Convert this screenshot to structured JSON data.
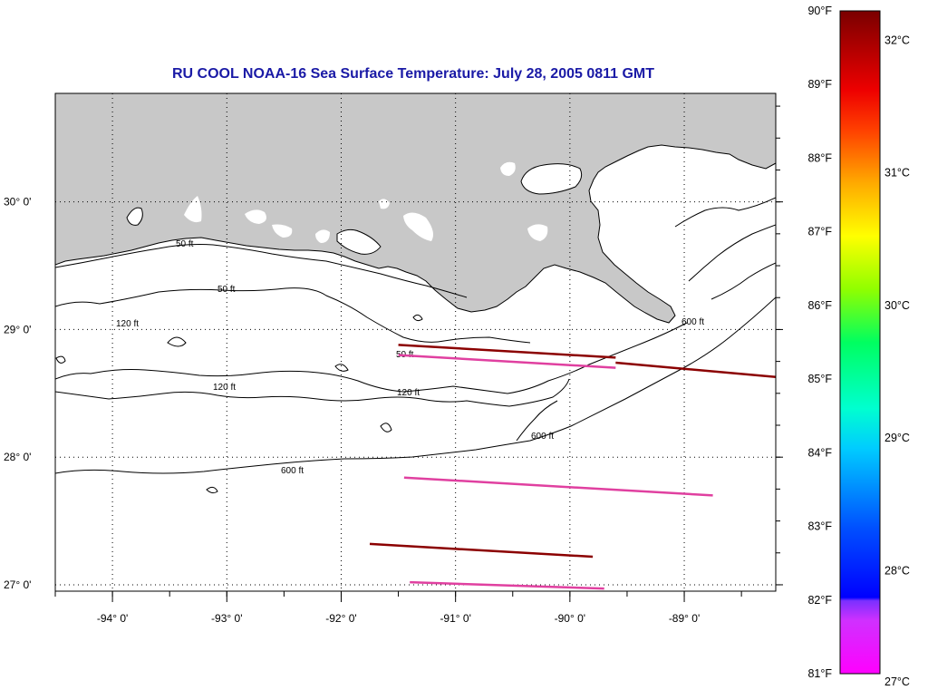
{
  "title": "RU COOL  NOAA-16  Sea Surface Temperature:  July 28, 2005 0811 GMT",
  "map": {
    "lon_range": [
      -94.5,
      -88.2
    ],
    "lat_range": [
      26.95,
      30.85
    ],
    "lon_ticks": [
      {
        "value": -94,
        "label": "-94° 0'"
      },
      {
        "value": -93,
        "label": "-93° 0'"
      },
      {
        "value": -92,
        "label": "-92° 0'"
      },
      {
        "value": -91,
        "label": "-91° 0'"
      },
      {
        "value": -90,
        "label": "-90° 0'"
      },
      {
        "value": -89,
        "label": "-89° 0'"
      }
    ],
    "lat_ticks": [
      {
        "value": 30,
        "label": "30° 0'"
      },
      {
        "value": 29,
        "label": "29° 0'"
      },
      {
        "value": 28,
        "label": "28° 0'"
      },
      {
        "value": 27,
        "label": "27° 0'"
      }
    ],
    "contour_labels": [
      "50 ft",
      "50 ft",
      "50 ft",
      "120 ft",
      "120 ft",
      "120 ft",
      "600 ft",
      "600 ft",
      "600 ft"
    ],
    "land_color": "#c8c8c8",
    "ocean_color": "#ffffff",
    "data_strips": [
      {
        "color": "#8b0000",
        "lat_start": 28.88,
        "lat_end": 28.78,
        "lon_start": -91.5,
        "lon_end": -89.6
      },
      {
        "color": "#8b0000",
        "lat_start": 28.74,
        "lat_end": 28.62,
        "lon_start": -89.6,
        "lon_end": -88.1
      },
      {
        "color": "#e040a0",
        "lat_start": 28.8,
        "lat_end": 28.7,
        "lon_start": -91.5,
        "lon_end": -89.6
      },
      {
        "color": "#e040a0",
        "lat_start": 27.84,
        "lat_end": 27.7,
        "lon_start": -91.45,
        "lon_end": -88.75
      },
      {
        "color": "#8b0000",
        "lat_start": 27.32,
        "lat_end": 27.22,
        "lon_start": -91.75,
        "lon_end": -89.8
      },
      {
        "color": "#e040a0",
        "lat_start": 27.02,
        "lat_end": 26.97,
        "lon_start": -91.4,
        "lon_end": -89.7
      }
    ]
  },
  "colorbar": {
    "left_labels": [
      "90°F",
      "89°F",
      "88°F",
      "87°F",
      "86°F",
      "85°F",
      "84°F",
      "83°F",
      "82°F",
      "81°F"
    ],
    "right_labels": [
      "32°C",
      "31°C",
      "30°C",
      "29°C",
      "28°C",
      "27°C"
    ],
    "fahrenheit_range": [
      81,
      90
    ],
    "celsius_range": [
      27,
      32
    ],
    "stops": [
      "#ff00ff",
      "#c040ff",
      "#0000ff",
      "#0066ff",
      "#00ccff",
      "#00ffcc",
      "#00ff66",
      "#88ff00",
      "#ffff00",
      "#ffaa00",
      "#ff5500",
      "#ff0000",
      "#aa0000",
      "#7a0000"
    ]
  }
}
